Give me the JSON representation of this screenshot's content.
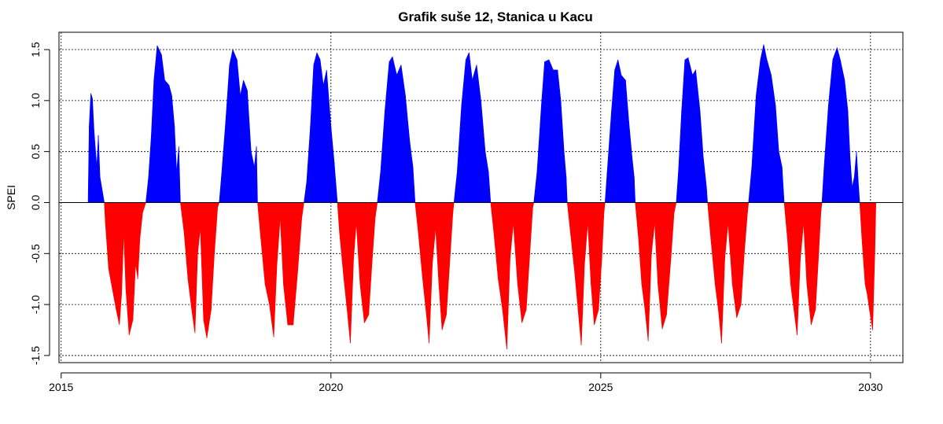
{
  "chart_data": {
    "type": "area",
    "title": "Grafik suše 12, Stanica u Kacu",
    "xlabel": "",
    "ylabel": "SPEI",
    "xlim": [
      2014.96,
      2030.6
    ],
    "ylim": [
      -1.57,
      1.67
    ],
    "x_ticks": [
      2015,
      2020,
      2025,
      2030
    ],
    "y_ticks": [
      -1.5,
      -1.0,
      -0.5,
      0.0,
      0.5,
      1.0,
      1.5
    ],
    "y_tick_labels": [
      "-1.5",
      "-1.0",
      "-0.5",
      "0.0",
      "0.5",
      "1.0",
      "1.5"
    ],
    "grid": true,
    "colors": {
      "positive": "#0000ff",
      "negative": "#ff0000",
      "zero_line": "#000000"
    },
    "series": [
      {
        "values": [
          [
            2015.5,
            0.0
          ],
          [
            2015.52,
            0.75
          ],
          [
            2015.55,
            1.07
          ],
          [
            2015.58,
            1.02
          ],
          [
            2015.61,
            0.7
          ],
          [
            2015.66,
            0.35
          ],
          [
            2015.69,
            0.66
          ],
          [
            2015.72,
            0.25
          ],
          [
            2015.8,
            0.0
          ],
          [
            2015.82,
            -0.2
          ],
          [
            2015.88,
            -0.65
          ],
          [
            2015.95,
            -0.85
          ],
          [
            2016.02,
            -1.05
          ],
          [
            2016.08,
            -1.2
          ],
          [
            2016.12,
            -0.9
          ],
          [
            2016.16,
            -0.3
          ],
          [
            2016.2,
            -0.85
          ],
          [
            2016.26,
            -1.3
          ],
          [
            2016.33,
            -1.15
          ],
          [
            2016.38,
            -0.6
          ],
          [
            2016.42,
            -0.75
          ],
          [
            2016.46,
            -0.35
          ],
          [
            2016.51,
            -0.1
          ],
          [
            2016.57,
            0.0
          ],
          [
            2016.62,
            0.25
          ],
          [
            2016.67,
            0.65
          ],
          [
            2016.72,
            1.2
          ],
          [
            2016.78,
            1.54
          ],
          [
            2016.86,
            1.45
          ],
          [
            2016.92,
            1.2
          ],
          [
            2017.0,
            1.15
          ],
          [
            2017.05,
            1.05
          ],
          [
            2017.1,
            0.75
          ],
          [
            2017.14,
            0.3
          ],
          [
            2017.18,
            0.55
          ],
          [
            2017.21,
            0.0
          ],
          [
            2017.28,
            -0.3
          ],
          [
            2017.35,
            -0.75
          ],
          [
            2017.42,
            -1.05
          ],
          [
            2017.48,
            -1.28
          ],
          [
            2017.53,
            -0.5
          ],
          [
            2017.58,
            -0.25
          ],
          [
            2017.64,
            -1.15
          ],
          [
            2017.7,
            -1.33
          ],
          [
            2017.78,
            -1.05
          ],
          [
            2017.84,
            -0.5
          ],
          [
            2017.9,
            -0.05
          ],
          [
            2017.93,
            0.0
          ],
          [
            2017.97,
            0.25
          ],
          [
            2018.05,
            0.8
          ],
          [
            2018.12,
            1.35
          ],
          [
            2018.18,
            1.5
          ],
          [
            2018.26,
            1.4
          ],
          [
            2018.32,
            1.05
          ],
          [
            2018.38,
            1.2
          ],
          [
            2018.45,
            1.1
          ],
          [
            2018.52,
            0.5
          ],
          [
            2018.58,
            0.35
          ],
          [
            2018.62,
            0.55
          ],
          [
            2018.64,
            0.0
          ],
          [
            2018.7,
            -0.35
          ],
          [
            2018.78,
            -0.8
          ],
          [
            2018.86,
            -1.0
          ],
          [
            2018.94,
            -1.32
          ],
          [
            2019.0,
            -0.6
          ],
          [
            2019.06,
            -0.15
          ],
          [
            2019.12,
            -0.8
          ],
          [
            2019.2,
            -1.2
          ],
          [
            2019.3,
            -1.2
          ],
          [
            2019.38,
            -0.7
          ],
          [
            2019.46,
            -0.15
          ],
          [
            2019.5,
            0.0
          ],
          [
            2019.55,
            0.2
          ],
          [
            2019.62,
            0.75
          ],
          [
            2019.68,
            1.35
          ],
          [
            2019.74,
            1.47
          ],
          [
            2019.8,
            1.4
          ],
          [
            2019.86,
            1.15
          ],
          [
            2019.92,
            1.3
          ],
          [
            2020.0,
            0.75
          ],
          [
            2020.06,
            0.4
          ],
          [
            2020.12,
            0.0
          ],
          [
            2020.16,
            -0.3
          ],
          [
            2020.24,
            -0.75
          ],
          [
            2020.3,
            -1.05
          ],
          [
            2020.36,
            -1.38
          ],
          [
            2020.42,
            -0.55
          ],
          [
            2020.47,
            -0.2
          ],
          [
            2020.54,
            -0.8
          ],
          [
            2020.62,
            -1.18
          ],
          [
            2020.7,
            -1.1
          ],
          [
            2020.76,
            -0.6
          ],
          [
            2020.82,
            -0.15
          ],
          [
            2020.86,
            0.0
          ],
          [
            2020.92,
            0.3
          ],
          [
            2021.0,
            0.9
          ],
          [
            2021.08,
            1.38
          ],
          [
            2021.14,
            1.43
          ],
          [
            2021.22,
            1.25
          ],
          [
            2021.3,
            1.35
          ],
          [
            2021.38,
            1.05
          ],
          [
            2021.46,
            0.6
          ],
          [
            2021.52,
            0.35
          ],
          [
            2021.56,
            0.0
          ],
          [
            2021.62,
            -0.3
          ],
          [
            2021.7,
            -0.75
          ],
          [
            2021.76,
            -1.05
          ],
          [
            2021.82,
            -1.38
          ],
          [
            2021.88,
            -0.6
          ],
          [
            2021.94,
            -0.25
          ],
          [
            2022.0,
            -0.8
          ],
          [
            2022.06,
            -1.25
          ],
          [
            2022.14,
            -1.1
          ],
          [
            2022.2,
            -0.6
          ],
          [
            2022.26,
            -0.1
          ],
          [
            2022.28,
            0.0
          ],
          [
            2022.34,
            0.3
          ],
          [
            2022.42,
            0.95
          ],
          [
            2022.5,
            1.4
          ],
          [
            2022.56,
            1.47
          ],
          [
            2022.62,
            1.2
          ],
          [
            2022.7,
            1.35
          ],
          [
            2022.78,
            1.0
          ],
          [
            2022.86,
            0.5
          ],
          [
            2022.92,
            0.3
          ],
          [
            2022.96,
            0.0
          ],
          [
            2023.02,
            -0.3
          ],
          [
            2023.1,
            -0.75
          ],
          [
            2023.18,
            -1.05
          ],
          [
            2023.26,
            -1.44
          ],
          [
            2023.32,
            -0.55
          ],
          [
            2023.38,
            -0.2
          ],
          [
            2023.46,
            -0.8
          ],
          [
            2023.54,
            -1.18
          ],
          [
            2023.62,
            -1.05
          ],
          [
            2023.68,
            -0.55
          ],
          [
            2023.74,
            -0.05
          ],
          [
            2023.76,
            0.0
          ],
          [
            2023.82,
            0.3
          ],
          [
            2023.9,
            0.95
          ],
          [
            2023.96,
            1.38
          ],
          [
            2024.04,
            1.4
          ],
          [
            2024.12,
            1.3
          ],
          [
            2024.2,
            1.3
          ],
          [
            2024.26,
            1.0
          ],
          [
            2024.32,
            0.5
          ],
          [
            2024.36,
            0.25
          ],
          [
            2024.38,
            0.0
          ],
          [
            2024.44,
            -0.3
          ],
          [
            2024.52,
            -0.7
          ],
          [
            2024.58,
            -1.05
          ],
          [
            2024.64,
            -1.4
          ],
          [
            2024.7,
            -0.6
          ],
          [
            2024.76,
            -0.2
          ],
          [
            2024.82,
            -0.8
          ],
          [
            2024.88,
            -1.2
          ],
          [
            2024.96,
            -1.05
          ],
          [
            2025.02,
            -0.55
          ],
          [
            2025.06,
            -0.1
          ],
          [
            2025.08,
            0.0
          ],
          [
            2025.12,
            0.3
          ],
          [
            2025.2,
            0.9
          ],
          [
            2025.26,
            1.3
          ],
          [
            2025.32,
            1.4
          ],
          [
            2025.38,
            1.25
          ],
          [
            2025.46,
            1.2
          ],
          [
            2025.52,
            0.8
          ],
          [
            2025.58,
            0.45
          ],
          [
            2025.62,
            0.25
          ],
          [
            2025.64,
            0.0
          ],
          [
            2025.7,
            -0.35
          ],
          [
            2025.76,
            -0.8
          ],
          [
            2025.82,
            -1.05
          ],
          [
            2025.88,
            -1.36
          ],
          [
            2025.94,
            -0.5
          ],
          [
            2026.0,
            -0.2
          ],
          [
            2026.06,
            -0.8
          ],
          [
            2026.14,
            -1.24
          ],
          [
            2026.22,
            -1.1
          ],
          [
            2026.3,
            -0.55
          ],
          [
            2026.36,
            -0.1
          ],
          [
            2026.4,
            0.0
          ],
          [
            2026.44,
            0.3
          ],
          [
            2026.5,
            0.9
          ],
          [
            2026.56,
            1.4
          ],
          [
            2026.62,
            1.42
          ],
          [
            2026.7,
            1.25
          ],
          [
            2026.76,
            1.3
          ],
          [
            2026.84,
            0.9
          ],
          [
            2026.9,
            0.45
          ],
          [
            2026.96,
            0.15
          ],
          [
            2026.98,
            0.0
          ],
          [
            2027.04,
            -0.35
          ],
          [
            2027.12,
            -0.8
          ],
          [
            2027.18,
            -1.05
          ],
          [
            2027.24,
            -1.38
          ],
          [
            2027.3,
            -0.55
          ],
          [
            2027.36,
            -0.2
          ],
          [
            2027.44,
            -0.8
          ],
          [
            2027.52,
            -1.13
          ],
          [
            2027.6,
            -1.0
          ],
          [
            2027.66,
            -0.5
          ],
          [
            2027.72,
            -0.1
          ],
          [
            2027.74,
            0.0
          ],
          [
            2027.8,
            0.35
          ],
          [
            2027.88,
            1.05
          ],
          [
            2027.96,
            1.4
          ],
          [
            2028.02,
            1.55
          ],
          [
            2028.08,
            1.4
          ],
          [
            2028.16,
            1.25
          ],
          [
            2028.24,
            0.95
          ],
          [
            2028.3,
            0.5
          ],
          [
            2028.36,
            0.35
          ],
          [
            2028.4,
            0.0
          ],
          [
            2028.46,
            -0.35
          ],
          [
            2028.52,
            -0.8
          ],
          [
            2028.58,
            -1.05
          ],
          [
            2028.64,
            -1.3
          ],
          [
            2028.7,
            -0.55
          ],
          [
            2028.76,
            -0.2
          ],
          [
            2028.82,
            -0.8
          ],
          [
            2028.9,
            -1.2
          ],
          [
            2028.98,
            -1.05
          ],
          [
            2029.04,
            -0.5
          ],
          [
            2029.08,
            -0.1
          ],
          [
            2029.1,
            0.0
          ],
          [
            2029.14,
            0.35
          ],
          [
            2029.22,
            0.95
          ],
          [
            2029.3,
            1.4
          ],
          [
            2029.38,
            1.52
          ],
          [
            2029.44,
            1.4
          ],
          [
            2029.52,
            1.2
          ],
          [
            2029.58,
            0.9
          ],
          [
            2029.62,
            0.45
          ],
          [
            2029.66,
            0.15
          ],
          [
            2029.7,
            0.25
          ],
          [
            2029.74,
            0.5
          ],
          [
            2029.78,
            0.15
          ],
          [
            2029.8,
            0.0
          ],
          [
            2029.84,
            -0.35
          ],
          [
            2029.9,
            -0.8
          ],
          [
            2029.94,
            -0.9
          ],
          [
            2029.98,
            -1.05
          ],
          [
            2030.04,
            -1.25
          ],
          [
            2030.08,
            -0.5
          ],
          [
            2030.1,
            0.0
          ]
        ]
      }
    ]
  }
}
